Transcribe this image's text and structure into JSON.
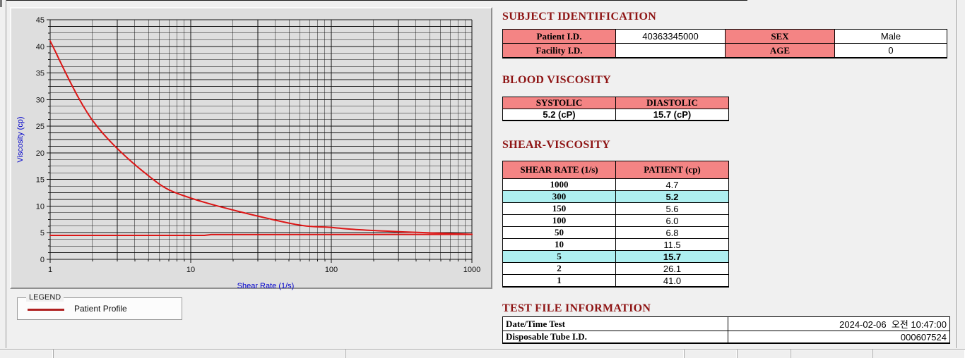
{
  "chart_data": {
    "type": "line",
    "title": "",
    "xlabel": "Shear Rate (1/s)",
    "ylabel": "Viscosity (cp)",
    "x_scale": "log",
    "xlim": [
      1,
      1000
    ],
    "ylim": [
      0,
      45
    ],
    "x_ticks": [
      1,
      10,
      100,
      1000
    ],
    "y_ticks": [
      0,
      5,
      10,
      15,
      20,
      25,
      30,
      35,
      40,
      45
    ],
    "y_minor_step": 1.25,
    "grid": "on",
    "legend_position": "below-left",
    "series": [
      {
        "name": "Patient Profile",
        "color": "#dc1616",
        "smooth": true,
        "x": [
          1,
          2,
          5,
          10,
          50,
          100,
          150,
          300,
          1000
        ],
        "y": [
          41.0,
          26.1,
          15.7,
          11.5,
          6.8,
          6.0,
          5.6,
          5.2,
          4.7
        ]
      },
      {
        "name": "",
        "color": "#dc1616",
        "smooth": false,
        "x": [
          1,
          12.5,
          14,
          1000
        ],
        "y": [
          4.5,
          4.5,
          4.65,
          4.68
        ]
      }
    ]
  },
  "legend": {
    "title": "LEGEND",
    "series_label": "Patient Profile",
    "line_color": "#b02020"
  },
  "subject_identification": {
    "title": "SUBJECT IDENTIFICATION",
    "rows": [
      [
        "Patient I.D.",
        "40363345000",
        "SEX",
        "Male"
      ],
      [
        "Facility I.D.",
        "",
        "AGE",
        "0"
      ]
    ]
  },
  "blood_viscosity": {
    "title": "BLOOD VISCOSITY",
    "headers": [
      "SYSTOLIC",
      "DIASTOLIC"
    ],
    "values": [
      "5.2 (cP)",
      "15.7 (cP)"
    ]
  },
  "shear_viscosity": {
    "title": "SHEAR-VISCOSITY",
    "headers": [
      "SHEAR RATE (1/s)",
      "PATIENT (cp)"
    ],
    "rows": [
      [
        "1000",
        "4.7"
      ],
      [
        "300",
        "5.2"
      ],
      [
        "150",
        "5.6"
      ],
      [
        "100",
        "6.0"
      ],
      [
        "50",
        "6.8"
      ],
      [
        "10",
        "11.5"
      ],
      [
        "5",
        "15.7"
      ],
      [
        "2",
        "26.1"
      ],
      [
        "1",
        "41.0"
      ]
    ],
    "highlight_rows": [
      1,
      6
    ],
    "highlight_color": "#aeeff0"
  },
  "test_file_information": {
    "title": "TEST FILE INFORMATION",
    "rows": [
      [
        "Date/Time Test",
        "2024-02-06  오전 10:47:00"
      ],
      [
        "Disposable Tube I.D.",
        "000607524"
      ]
    ]
  },
  "colors": {
    "section_title": "#8e1414",
    "table_header_pink": "#f48484",
    "curve_red": "#dc1616",
    "axis_title_blue": "#0000cc",
    "panel_gray": "#dedede",
    "page_background": "#f0f0f0"
  }
}
